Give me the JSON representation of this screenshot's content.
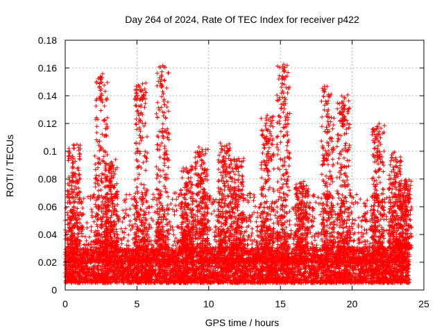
{
  "chart_data": {
    "type": "scatter",
    "title": "Day 264 of 2024, Rate Of TEC Index for receiver p422",
    "xlabel": "GPS time / hours",
    "ylabel": "ROTI / TECUs",
    "xlim": [
      0,
      25
    ],
    "ylim": [
      0,
      0.18
    ],
    "xticks": [
      "0",
      "5",
      "10",
      "15",
      "20",
      "25"
    ],
    "yticks": [
      "0",
      "0.02",
      "0.04",
      "0.06",
      "0.08",
      "0.1",
      "0.12",
      "0.14",
      "0.16",
      "0.18"
    ],
    "grid": true,
    "marker": "+",
    "color": "#ff0000",
    "x_range_observed": [
      0,
      24
    ],
    "baseline_band": [
      0.005,
      0.03
    ],
    "activity_peaks": [
      {
        "x": 0.6,
        "y": 0.105
      },
      {
        "x": 2.5,
        "y": 0.156
      },
      {
        "x": 3.2,
        "y": 0.095
      },
      {
        "x": 5.3,
        "y": 0.15
      },
      {
        "x": 6.8,
        "y": 0.163
      },
      {
        "x": 8.5,
        "y": 0.09
      },
      {
        "x": 9.5,
        "y": 0.103
      },
      {
        "x": 11.1,
        "y": 0.106
      },
      {
        "x": 12.0,
        "y": 0.095
      },
      {
        "x": 14.1,
        "y": 0.126
      },
      {
        "x": 15.2,
        "y": 0.164
      },
      {
        "x": 16.5,
        "y": 0.08
      },
      {
        "x": 18.3,
        "y": 0.148
      },
      {
        "x": 19.4,
        "y": 0.142
      },
      {
        "x": 21.8,
        "y": 0.12
      },
      {
        "x": 23.0,
        "y": 0.1
      },
      {
        "x": 23.7,
        "y": 0.08
      }
    ]
  }
}
